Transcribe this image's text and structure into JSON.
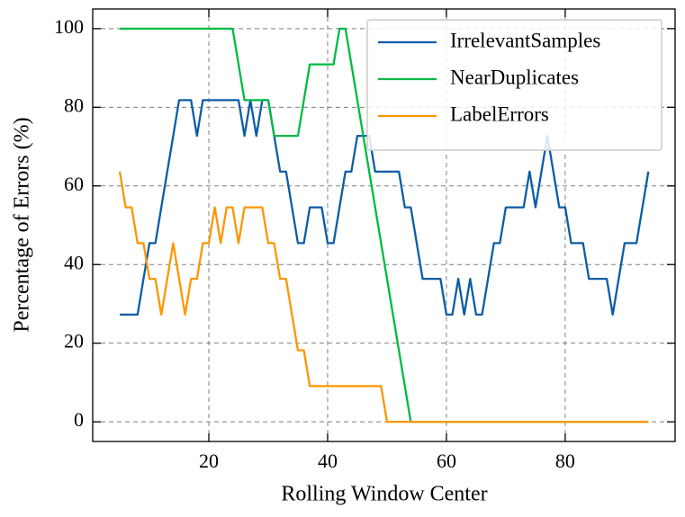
{
  "chart_data": {
    "type": "line",
    "xlabel": "Rolling Window Center",
    "ylabel": "Percentage of Errors (%)",
    "xlim": [
      0.45,
      98.5
    ],
    "ylim": [
      -5,
      105
    ],
    "xticks": [
      20,
      40,
      60,
      80
    ],
    "yticks": [
      0,
      20,
      40,
      60,
      80,
      100
    ],
    "grid": true,
    "legend": "upper right",
    "series": [
      {
        "name": "IrrelevantSamples",
        "color": "#0c5da5",
        "x": [
          5,
          8,
          10,
          11,
          15,
          17,
          18,
          19,
          25,
          26,
          27,
          28,
          29,
          30,
          32,
          33,
          35,
          36,
          37,
          39,
          40,
          41,
          43,
          44,
          45,
          47,
          48,
          52,
          53,
          54,
          56,
          59,
          60,
          61,
          62,
          63,
          64,
          65,
          66,
          68,
          69,
          70,
          73,
          74,
          75,
          77,
          79,
          80,
          81,
          83,
          84,
          87,
          88,
          90,
          92,
          94
        ],
        "values": [
          27.27,
          27.27,
          45.45,
          45.45,
          81.82,
          81.82,
          72.73,
          81.82,
          81.82,
          72.73,
          81.82,
          72.73,
          81.82,
          81.82,
          63.64,
          63.64,
          45.45,
          45.45,
          54.55,
          54.55,
          45.45,
          45.45,
          63.64,
          63.64,
          72.73,
          72.73,
          63.64,
          63.64,
          54.55,
          54.55,
          36.36,
          36.36,
          27.27,
          27.27,
          36.36,
          27.27,
          36.36,
          27.27,
          27.27,
          45.45,
          45.45,
          54.55,
          54.55,
          63.64,
          54.55,
          72.73,
          54.55,
          54.55,
          45.45,
          45.45,
          36.36,
          36.36,
          27.27,
          45.45,
          45.45,
          63.64
        ]
      },
      {
        "name": "NearDuplicates",
        "color": "#00b945",
        "x": [
          5,
          24,
          26,
          30,
          31,
          35,
          37,
          41,
          42,
          43,
          54,
          94
        ],
        "values": [
          100,
          100,
          81.82,
          81.82,
          72.73,
          72.73,
          90.91,
          90.91,
          100,
          100,
          0,
          0
        ]
      },
      {
        "name": "LabelErrors",
        "color": "#ff9500",
        "x": [
          5,
          6,
          7,
          8,
          9,
          10,
          11,
          12,
          13,
          14,
          15,
          16,
          17,
          18,
          19,
          20,
          21,
          22,
          23,
          24,
          25,
          26,
          29,
          30,
          31,
          32,
          33,
          34,
          35,
          36,
          37,
          49,
          50,
          94
        ],
        "values": [
          63.64,
          54.55,
          54.55,
          45.45,
          45.45,
          36.36,
          36.36,
          27.27,
          36.36,
          45.45,
          36.36,
          27.27,
          36.36,
          36.36,
          45.45,
          45.45,
          54.55,
          45.45,
          54.55,
          54.55,
          45.45,
          54.55,
          54.55,
          45.45,
          45.45,
          36.36,
          36.36,
          27.27,
          18.18,
          18.18,
          9.09,
          9.09,
          0,
          0
        ]
      }
    ]
  }
}
